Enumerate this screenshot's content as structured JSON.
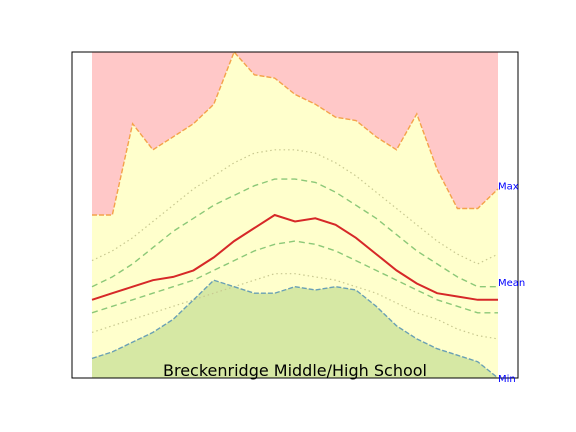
{
  "chart_data": {
    "type": "area",
    "title": "Breckenridge Middle/High School",
    "xlabel": "",
    "ylabel": "",
    "ylim": [
      0,
      1
    ],
    "grid": false,
    "legend": "none",
    "right_labels": [
      {
        "text": "Max",
        "y": 0.59
      },
      {
        "text": "Mean",
        "y": 0.295
      },
      {
        "text": "Min",
        "y": 0.0
      }
    ],
    "colors": {
      "above_max": "#ffc8c8",
      "band": "#ffffcc",
      "below_min": "#d6e8a4",
      "max_line": "#f4a24a",
      "min_line": "#6aa0b4",
      "mean_line": "#d62828",
      "inner_band": "#8cc878",
      "outer_band": "#c8c890",
      "label": "#0000ff"
    },
    "x": [
      0,
      5,
      10,
      15,
      20,
      25,
      30,
      35,
      40,
      45,
      50,
      55,
      60,
      65,
      70,
      75,
      80,
      85,
      90,
      95,
      100
    ],
    "series": [
      {
        "key": "max",
        "values": [
          0.5,
          0.5,
          0.78,
          0.7,
          0.74,
          0.78,
          0.84,
          1.0,
          0.93,
          0.92,
          0.87,
          0.84,
          0.8,
          0.79,
          0.74,
          0.7,
          0.81,
          0.64,
          0.52,
          0.52,
          0.58
        ]
      },
      {
        "key": "outer_upper",
        "values": [
          0.36,
          0.39,
          0.43,
          0.48,
          0.53,
          0.58,
          0.62,
          0.66,
          0.69,
          0.7,
          0.7,
          0.69,
          0.66,
          0.62,
          0.57,
          0.52,
          0.47,
          0.42,
          0.38,
          0.35,
          0.38
        ]
      },
      {
        "key": "inner_upper",
        "values": [
          0.28,
          0.31,
          0.35,
          0.4,
          0.45,
          0.49,
          0.53,
          0.56,
          0.59,
          0.61,
          0.61,
          0.6,
          0.57,
          0.53,
          0.49,
          0.44,
          0.39,
          0.35,
          0.31,
          0.28,
          0.28
        ]
      },
      {
        "key": "mean",
        "values": [
          0.24,
          0.26,
          0.28,
          0.3,
          0.31,
          0.33,
          0.37,
          0.42,
          0.46,
          0.5,
          0.48,
          0.49,
          0.47,
          0.43,
          0.38,
          0.33,
          0.29,
          0.26,
          0.25,
          0.24,
          0.24
        ]
      },
      {
        "key": "inner_lower",
        "values": [
          0.2,
          0.22,
          0.24,
          0.26,
          0.28,
          0.3,
          0.33,
          0.36,
          0.39,
          0.41,
          0.42,
          0.41,
          0.39,
          0.36,
          0.33,
          0.3,
          0.27,
          0.24,
          0.22,
          0.2,
          0.2
        ]
      },
      {
        "key": "outer_lower",
        "values": [
          0.14,
          0.16,
          0.18,
          0.2,
          0.22,
          0.24,
          0.26,
          0.28,
          0.3,
          0.32,
          0.32,
          0.31,
          0.3,
          0.28,
          0.26,
          0.23,
          0.2,
          0.18,
          0.15,
          0.13,
          0.12
        ]
      },
      {
        "key": "min",
        "values": [
          0.06,
          0.08,
          0.11,
          0.14,
          0.18,
          0.24,
          0.3,
          0.28,
          0.26,
          0.26,
          0.28,
          0.27,
          0.28,
          0.27,
          0.22,
          0.16,
          0.12,
          0.09,
          0.07,
          0.05,
          0.0
        ]
      }
    ]
  }
}
